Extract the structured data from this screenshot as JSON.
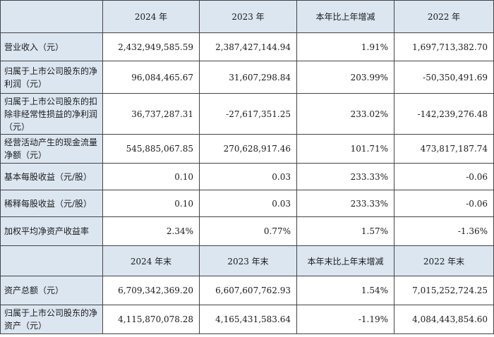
{
  "header1": [
    "2024 年",
    "2023 年",
    "本年比上年增减",
    "2022 年"
  ],
  "rows1": [
    {
      "label": "营业收入（元）",
      "values": [
        "2,432,949,585.59",
        "2,387,427,144.94",
        "1.91%",
        "1,697,713,382.70"
      ]
    },
    {
      "label": "归属于上市公司股东的净利润（元）",
      "values": [
        "96,084,465.67",
        "31,607,298.84",
        "203.99%",
        "-50,350,491.69"
      ]
    },
    {
      "label": "归属于上市公司股东的扣除非经常性损益的净利润（元）",
      "values": [
        "36,737,287.31",
        "-27,617,351.25",
        "233.02%",
        "-142,239,276.48"
      ]
    },
    {
      "label": "经营活动产生的现金流量净额（元）",
      "values": [
        "545,885,067.85",
        "270,628,917.46",
        "101.71%",
        "473,817,187.74"
      ]
    },
    {
      "label": "基本每股收益（元/股）",
      "values": [
        "0.10",
        "0.03",
        "233.33%",
        "-0.06"
      ]
    },
    {
      "label": "稀释每股收益（元/股）",
      "values": [
        "0.10",
        "0.03",
        "233.33%",
        "-0.06"
      ]
    },
    {
      "label": "加权平均净资产收益率",
      "values": [
        "2.34%",
        "0.77%",
        "1.57%",
        "-1.36%"
      ]
    }
  ],
  "header2": [
    "2024 年末",
    "2023 年末",
    "本年末比上年末增减",
    "2022 年末"
  ],
  "rows2": [
    {
      "label": "资产总额（元）",
      "values": [
        "6,709,342,369.20",
        "6,607,607,762.93",
        "1.54%",
        "7,015,252,724.25"
      ]
    },
    {
      "label": "归属于上市公司股东的净资产（元）",
      "values": [
        "4,115,870,078.28",
        "4,165,431,583.64",
        "-1.19%",
        "4,084,443,854.60"
      ]
    }
  ]
}
